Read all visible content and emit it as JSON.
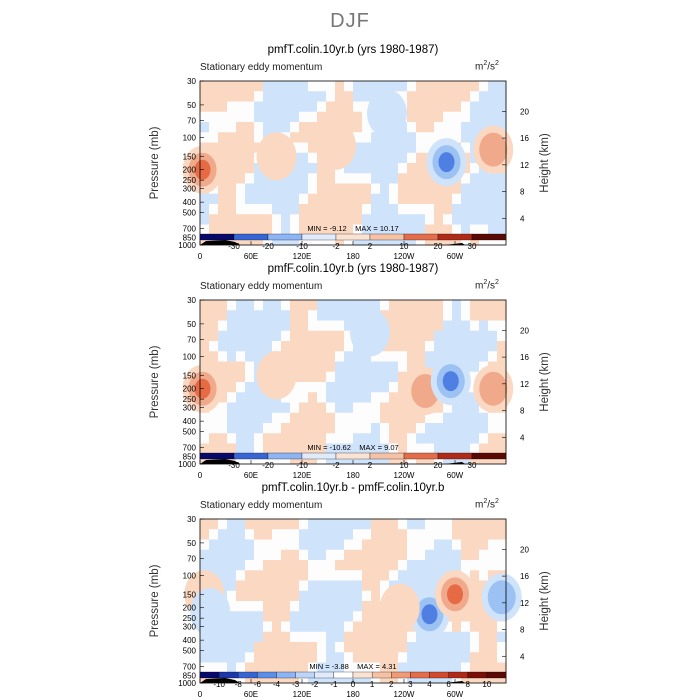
{
  "figure_title": "DJF",
  "colors": {
    "pos_light": "#fbd8c2",
    "pos_mid": "#f1a98b",
    "pos_strong": "#e66a44",
    "neg_light": "#cfe3fb",
    "neg_mid": "#9cc1f3",
    "neg_strong": "#4f7fe2",
    "terrain": "#000000"
  },
  "chart_data": [
    {
      "type": "heatmap",
      "title": "pmfT.colin.10yr.b (yrs 1980-1987)",
      "subtitle": "Stationary eddy momentum",
      "units_base": "m",
      "units_exp1": "2",
      "units_mid": "/s",
      "units_exp2": "2",
      "ylabel": "Pressure (mb)",
      "ylabel_right": "Height (km)",
      "pressure_ticks": [
        "30",
        "50",
        "70",
        "100",
        "150",
        "200",
        "250",
        "300",
        "400",
        "500",
        "700",
        "850",
        "1000"
      ],
      "height_ticks": [
        "4",
        "8",
        "12",
        "16",
        "20"
      ],
      "lon_ticks": [
        "0",
        "60E",
        "120E",
        "180",
        "120W",
        "60W"
      ],
      "min_label": "MIN = ",
      "min_value": "-9.12",
      "max_label": "MAX = ",
      "max_value": "10.17",
      "colorbar_labels": [
        "-30",
        "-20",
        "-10",
        "-2",
        "2",
        "10",
        "20",
        "30"
      ],
      "features": [
        {
          "lon": 3,
          "p": 200,
          "sign": 1,
          "amp": 3
        },
        {
          "lon": 90,
          "p": 150,
          "sign": 1,
          "amp": 1
        },
        {
          "lon": 160,
          "p": 120,
          "sign": 1,
          "amp": 1
        },
        {
          "lon": 290,
          "p": 170,
          "sign": -1,
          "amp": 3
        },
        {
          "lon": 345,
          "p": 130,
          "sign": 1,
          "amp": 2
        },
        {
          "lon": 220,
          "p": 60,
          "sign": -1,
          "amp": 1
        }
      ]
    },
    {
      "type": "heatmap",
      "title": "pmfF.colin.10yr.b (yrs 1980-1987)",
      "subtitle": "Stationary eddy momentum",
      "units_base": "m",
      "units_exp1": "2",
      "units_mid": "/s",
      "units_exp2": "2",
      "ylabel": "Pressure (mb)",
      "ylabel_right": "Height (km)",
      "pressure_ticks": [
        "30",
        "50",
        "70",
        "100",
        "150",
        "200",
        "250",
        "300",
        "400",
        "500",
        "700",
        "850",
        "1000"
      ],
      "height_ticks": [
        "4",
        "8",
        "12",
        "16",
        "20"
      ],
      "lon_ticks": [
        "0",
        "60E",
        "120E",
        "180",
        "120W",
        "60W"
      ],
      "min_label": "MIN = ",
      "min_value": "-10.62",
      "max_label": "MAX = ",
      "max_value": "9.07",
      "colorbar_labels": [
        "-30",
        "-20",
        "-10",
        "-2",
        "2",
        "10",
        "20",
        "30"
      ],
      "features": [
        {
          "lon": 3,
          "p": 200,
          "sign": 1,
          "amp": 3
        },
        {
          "lon": 90,
          "p": 150,
          "sign": 1,
          "amp": 1
        },
        {
          "lon": 265,
          "p": 210,
          "sign": 1,
          "amp": 2
        },
        {
          "lon": 295,
          "p": 170,
          "sign": -1,
          "amp": 3
        },
        {
          "lon": 345,
          "p": 200,
          "sign": 1,
          "amp": 2
        },
        {
          "lon": 200,
          "p": 60,
          "sign": -1,
          "amp": 1
        }
      ]
    },
    {
      "type": "heatmap",
      "title": "pmfT.colin.10yr.b - pmfF.colin.10yr.b",
      "subtitle": "Stationary eddy momentum",
      "units_base": "m",
      "units_exp1": "2",
      "units_mid": "/s",
      "units_exp2": "2",
      "ylabel": "Pressure (mb)",
      "ylabel_right": "Height (km)",
      "pressure_ticks": [
        "30",
        "50",
        "70",
        "100",
        "150",
        "200",
        "250",
        "300",
        "400",
        "500",
        "700",
        "850",
        "1000"
      ],
      "height_ticks": [
        "4",
        "8",
        "12",
        "16",
        "20"
      ],
      "lon_ticks": [
        "0",
        "60E",
        "120E",
        "180",
        "120W",
        "60W"
      ],
      "min_label": "MIN = ",
      "min_value": "-3.88",
      "max_label": "MAX = ",
      "max_value": "4.31",
      "colorbar_labels": [
        "-10",
        "-8",
        "-6",
        "-4",
        "-3",
        "-2",
        "-1",
        "0",
        "1",
        "2",
        "3",
        "4",
        "6",
        "8",
        "10"
      ],
      "features": [
        {
          "lon": 270,
          "p": 230,
          "sign": -1,
          "amp": 3
        },
        {
          "lon": 300,
          "p": 150,
          "sign": 1,
          "amp": 3
        },
        {
          "lon": 355,
          "p": 160,
          "sign": -1,
          "amp": 2
        },
        {
          "lon": 5,
          "p": 150,
          "sign": 1,
          "amp": 1
        },
        {
          "lon": 12,
          "p": 220,
          "sign": -1,
          "amp": 1
        },
        {
          "lon": 235,
          "p": 200,
          "sign": 1,
          "amp": 1
        }
      ]
    }
  ]
}
